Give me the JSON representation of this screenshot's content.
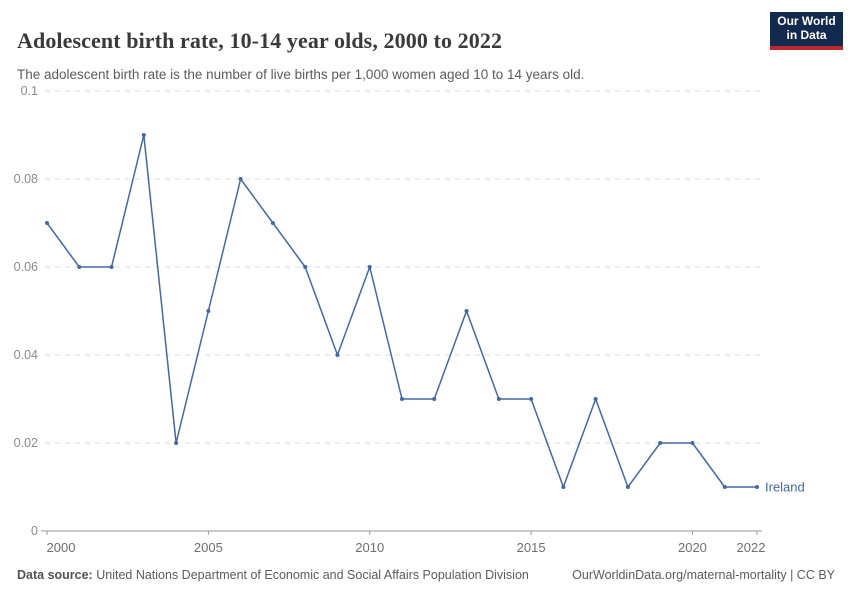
{
  "header": {
    "title": "Adolescent birth rate, 10-14 year olds, 2000 to 2022",
    "subtitle": "The adolescent birth rate is the number of live births per 1,000 women aged 10 to 14 years old.",
    "logo": {
      "line1": "Our World",
      "line2": "in Data"
    }
  },
  "chart_data": {
    "type": "line",
    "title": "Adolescent birth rate, 10-14 year olds, 2000 to 2022",
    "x": [
      2000,
      2001,
      2002,
      2003,
      2004,
      2005,
      2006,
      2007,
      2008,
      2009,
      2010,
      2011,
      2012,
      2013,
      2014,
      2015,
      2016,
      2017,
      2018,
      2019,
      2020,
      2021,
      2022
    ],
    "series": [
      {
        "name": "Ireland",
        "color": "#4468a5",
        "values": [
          0.07,
          0.06,
          0.06,
          0.09,
          0.02,
          0.05,
          0.08,
          0.07,
          0.06,
          0.04,
          0.06,
          0.03,
          0.03,
          0.05,
          0.03,
          0.03,
          0.01,
          0.03,
          0.01,
          0.02,
          0.02,
          0.01,
          0.01
        ]
      }
    ],
    "xlabel": "",
    "ylabel": "",
    "ylim": [
      0,
      0.1
    ],
    "yticks": [
      0,
      0.02,
      0.04,
      0.06,
      0.08,
      0.1
    ],
    "ytick_labels": [
      "0",
      "0.02",
      "0.04",
      "0.06",
      "0.08",
      "0.1"
    ],
    "xticks": [
      2000,
      2005,
      2010,
      2015,
      2020,
      2022
    ],
    "grid": "horizontal-dashed",
    "legend_position": "end-of-line-label"
  },
  "footer": {
    "source_label": "Data source:",
    "source_text": "United Nations Department of Economic and Social Affairs Population Division",
    "link_text": "OurWorldinData.org/maternal-mortality | CC BY"
  },
  "colors": {
    "line": "#4468a5",
    "logo_bg": "#122a4d",
    "logo_stripe": "#be282d",
    "grid": "#dcdcdc",
    "axis": "#9a9a9a",
    "tick_text": "#6e6e6e",
    "title_text": "#3a3a3a",
    "subtitle_text": "#5b5b5b"
  }
}
